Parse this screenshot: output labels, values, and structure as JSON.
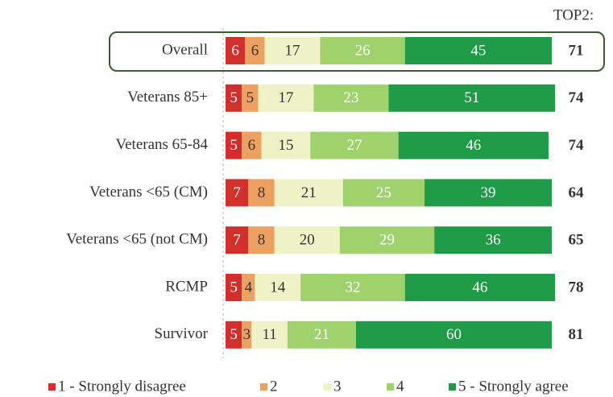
{
  "chart_data": {
    "type": "stacked-bar-horizontal",
    "categories": [
      "Overall",
      "Veterans 85+",
      "Veterans 65-84",
      "Veterans <65 (CM)",
      "Veterans <65 (not CM)",
      "RCMP",
      "Survivor"
    ],
    "series": [
      {
        "name": "1 - Strongly disagree",
        "color": "#d12f2c",
        "values": [
          6,
          5,
          5,
          7,
          7,
          5,
          5
        ]
      },
      {
        "name": "2",
        "color": "#eda161",
        "values": [
          6,
          5,
          6,
          8,
          8,
          4,
          3
        ]
      },
      {
        "name": "3",
        "color": "#eff2c6",
        "values": [
          17,
          17,
          15,
          21,
          20,
          14,
          11
        ]
      },
      {
        "name": "4",
        "color": "#9fd16c",
        "values": [
          26,
          23,
          27,
          25,
          29,
          32,
          21
        ]
      },
      {
        "name": "5 - Strongly agree",
        "color": "#1f9a47",
        "values": [
          45,
          51,
          46,
          39,
          36,
          46,
          60
        ]
      }
    ],
    "xlim": [
      0,
      100
    ],
    "top2_title": "TOP2:",
    "top2": [
      71,
      74,
      74,
      64,
      65,
      78,
      81
    ],
    "legend": "bottom"
  }
}
